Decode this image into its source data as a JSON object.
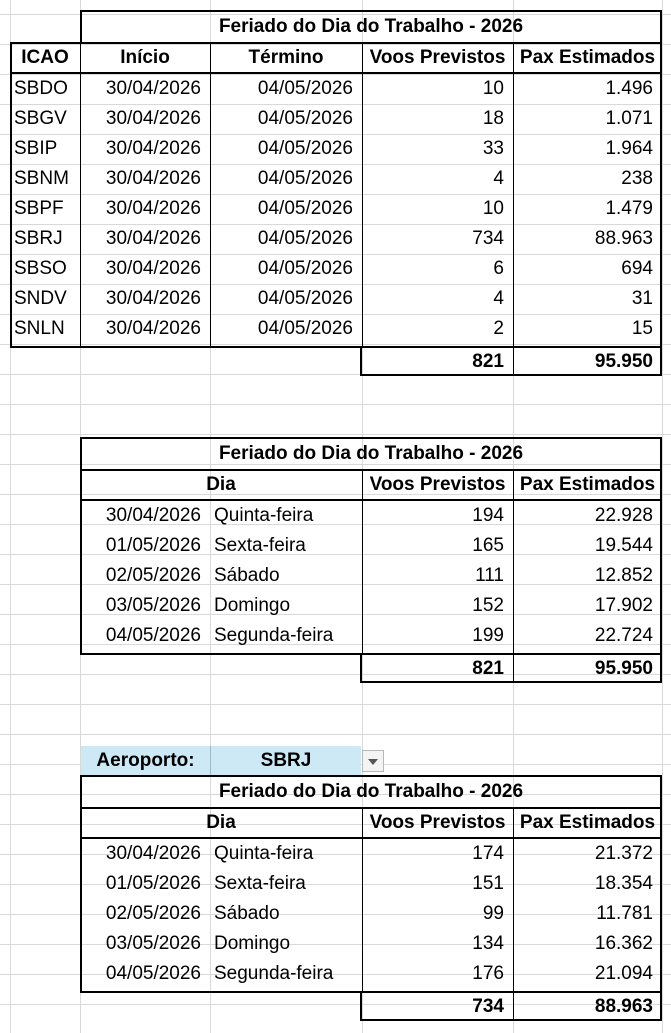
{
  "table1": {
    "title": "Feriado do Dia do Trabalho  - 2026",
    "headers": [
      "ICAO",
      "Início",
      "Término",
      "Voos Previstos",
      "Pax Estimados"
    ],
    "rows": [
      [
        "SBDO",
        "30/04/2026",
        "04/05/2026",
        "10",
        "1.496"
      ],
      [
        "SBGV",
        "30/04/2026",
        "04/05/2026",
        "18",
        "1.071"
      ],
      [
        "SBIP",
        "30/04/2026",
        "04/05/2026",
        "33",
        "1.964"
      ],
      [
        "SBNM",
        "30/04/2026",
        "04/05/2026",
        "4",
        "238"
      ],
      [
        "SBPF",
        "30/04/2026",
        "04/05/2026",
        "10",
        "1.479"
      ],
      [
        "SBRJ",
        "30/04/2026",
        "04/05/2026",
        "734",
        "88.963"
      ],
      [
        "SBSO",
        "30/04/2026",
        "04/05/2026",
        "6",
        "694"
      ],
      [
        "SNDV",
        "30/04/2026",
        "04/05/2026",
        "4",
        "31"
      ],
      [
        "SNLN",
        "30/04/2026",
        "04/05/2026",
        "2",
        "15"
      ]
    ],
    "total_voos": "821",
    "total_pax": "95.950"
  },
  "table2": {
    "title": "Feriado do Dia do Trabalho  - 2026",
    "headers": [
      "Dia",
      "Voos Previstos",
      "Pax Estimados"
    ],
    "rows": [
      [
        "30/04/2026",
        "Quinta-feira",
        "194",
        "22.928"
      ],
      [
        "01/05/2026",
        "Sexta-feira",
        "165",
        "19.544"
      ],
      [
        "02/05/2026",
        "Sábado",
        "111",
        "12.852"
      ],
      [
        "03/05/2026",
        "Domingo",
        "152",
        "17.902"
      ],
      [
        "04/05/2026",
        "Segunda-feira",
        "199",
        "22.724"
      ]
    ],
    "total_voos": "821",
    "total_pax": "95.950"
  },
  "filter": {
    "label": "Aeroporto:",
    "value": "SBRJ",
    "icon": "dropdown-arrow-icon"
  },
  "table3": {
    "title": "Feriado do Dia do Trabalho  - 2026",
    "headers": [
      "Dia",
      "Voos Previstos",
      "Pax Estimados"
    ],
    "rows": [
      [
        "30/04/2026",
        "Quinta-feira",
        "174",
        "21.372"
      ],
      [
        "01/05/2026",
        "Sexta-feira",
        "151",
        "18.354"
      ],
      [
        "02/05/2026",
        "Sábado",
        "99",
        "11.781"
      ],
      [
        "03/05/2026",
        "Domingo",
        "134",
        "16.362"
      ],
      [
        "04/05/2026",
        "Segunda-feira",
        "176",
        "21.094"
      ]
    ],
    "total_voos": "734",
    "total_pax": "88.963"
  },
  "colors": {
    "header_fill": "#cde9f6",
    "gridline": "#d9d9d9",
    "border": "#000000"
  }
}
